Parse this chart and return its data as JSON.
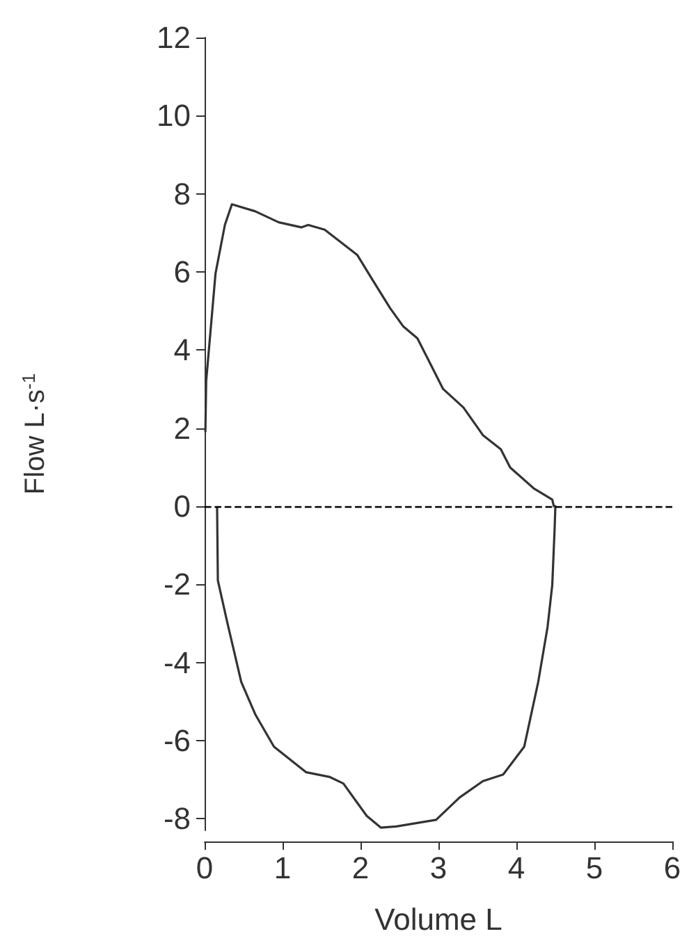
{
  "chart_data": {
    "type": "line",
    "xlabel": "Volume L",
    "ylabel": "Flow L·s$^{-1}$",
    "xlim": [
      0,
      6
    ],
    "xticks": [
      0,
      1,
      2,
      3,
      4,
      5,
      6
    ],
    "ylim": [
      -8.3,
      12
    ],
    "yticks": [
      -8,
      -6,
      -4,
      -2,
      0,
      2,
      4,
      6,
      8,
      10,
      12
    ],
    "grid": false,
    "marker": "none",
    "line_style": "solid",
    "ref_lines": [
      {
        "axis": "y",
        "value": 0,
        "label": null,
        "color": "#000000",
        "line_style": "dashed"
      }
    ],
    "series": [
      {
        "color": "#333333",
        "x": [
          0.01,
          0.02,
          0.14,
          0.26,
          0.35,
          0.65,
          0.95,
          1.24,
          1.33,
          1.54,
          1.96,
          2.14,
          2.38,
          2.55,
          2.73,
          3.06,
          3.32,
          3.57,
          3.8,
          3.92,
          4.22,
          4.46,
          4.48,
          4.5,
          4.49,
          4.46,
          4.4,
          4.28,
          4.1,
          3.83,
          3.57,
          3.27,
          2.97,
          2.46,
          2.26,
          2.08,
          1.78,
          1.6,
          1.3,
          0.89,
          0.65,
          0.47,
          0.29,
          0.17,
          0.16
        ],
        "values": [
          1.9,
          3.2,
          5.96,
          7.2,
          7.73,
          7.55,
          7.27,
          7.14,
          7.2,
          7.08,
          6.43,
          5.84,
          5.07,
          4.6,
          4.3,
          3.0,
          2.53,
          1.82,
          1.46,
          0.99,
          0.46,
          0.17,
          0,
          0,
          -0.6,
          -2.02,
          -3.09,
          -4.5,
          -6.16,
          -6.87,
          -7.04,
          -7.46,
          -8.03,
          -8.2,
          -8.23,
          -7.93,
          -7.1,
          -6.93,
          -6.81,
          -6.16,
          -5.33,
          -4.5,
          -2.97,
          -1.9,
          0
        ]
      }
    ]
  }
}
